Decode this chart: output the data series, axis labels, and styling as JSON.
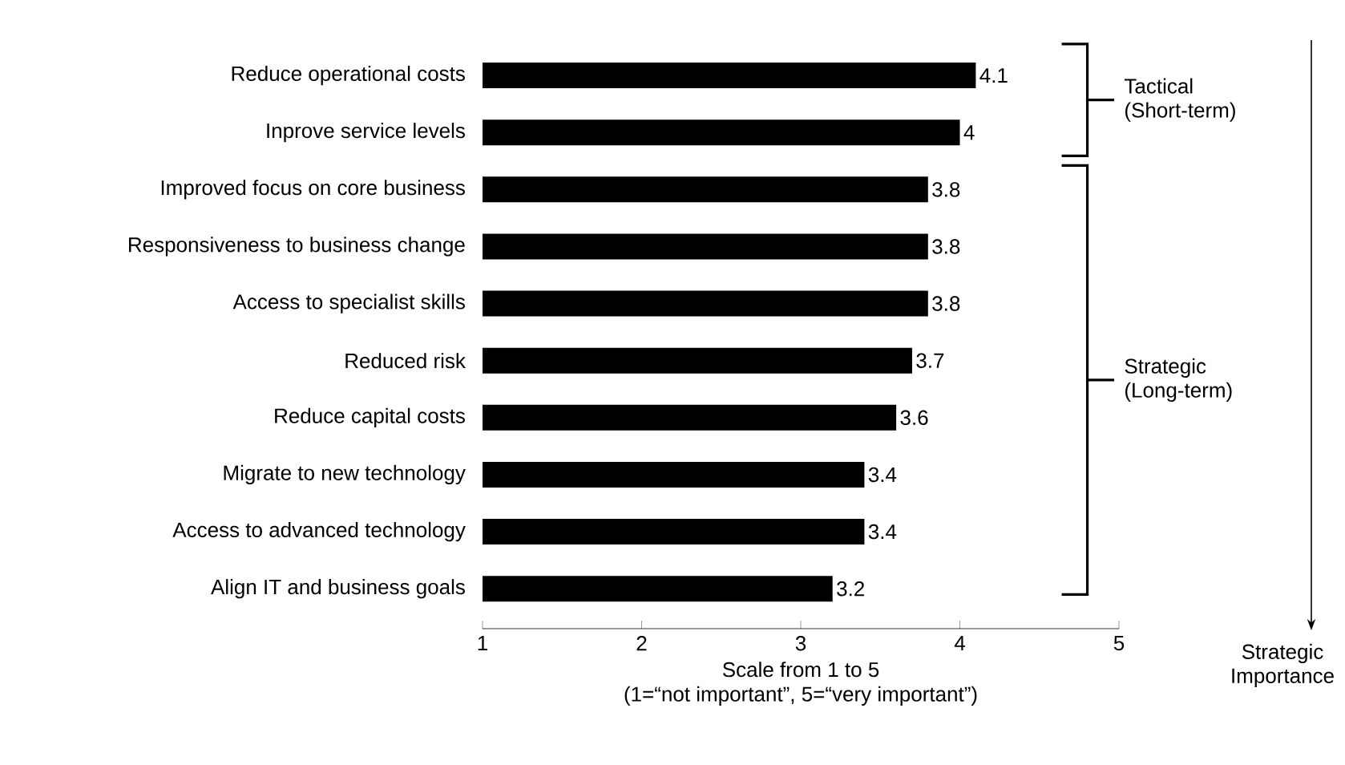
{
  "chart_data": {
    "type": "bar",
    "orientation": "horizontal",
    "categories": [
      "Reduce operational costs",
      "Inprove service levels",
      "Improved focus on core business",
      "Responsiveness to business change",
      "Access to specialist skills",
      "Reduced risk",
      "Reduce capital costs",
      "Migrate to new technology",
      "Access to advanced technology",
      "Align IT and business goals"
    ],
    "values": [
      4.1,
      4,
      3.8,
      3.8,
      3.8,
      3.7,
      3.6,
      3.4,
      3.4,
      3.2
    ],
    "color": "#000000",
    "data_labels": true,
    "xlim": [
      1,
      5
    ],
    "xticks": [
      1,
      2,
      3,
      4,
      5
    ],
    "xlabel": "Scale from 1 to 5",
    "annotations": [
      "Tactical (Short-term)",
      "Strategic (Long-term)",
      "Strategic Importance",
      "(1=“not important”, 5=“very important”)"
    ],
    "grid": false
  }
}
